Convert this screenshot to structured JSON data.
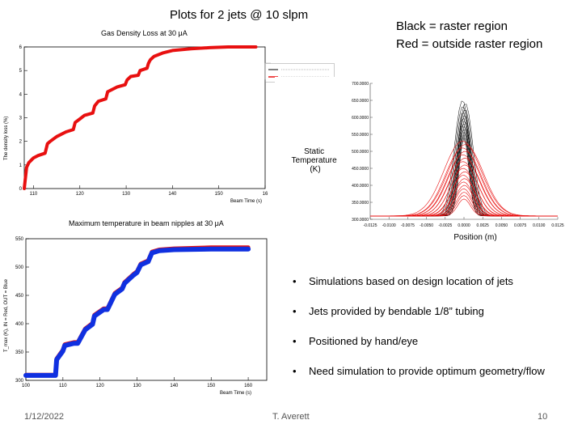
{
  "slide": {
    "title": "Plots for 2 jets @ 10 slpm",
    "legend_note_1": "Black = raster region",
    "legend_note_2": "Red = outside raster region",
    "date": "1/12/2022",
    "author": "T. Averett",
    "page": "10"
  },
  "bullets": [
    "Simulations based on design location of jets",
    "Jets provided by bendable 1/8” tubing",
    "Positioned by hand/eye",
    "Need simulation to provide optimum geometry/flow"
  ],
  "chart_data": [
    {
      "type": "line",
      "title": "Gas Density Loss at 30 μA",
      "xlabel": "Beam Time (s)",
      "ylabel": "The density loss (%)",
      "xlim": [
        108,
        160
      ],
      "ylim": [
        0,
        6
      ],
      "xticks": [
        "110",
        "120",
        "130",
        "140",
        "150",
        "16"
      ],
      "yticks": [
        "0",
        "1",
        "2",
        "3",
        "4",
        "5",
        "6"
      ],
      "series": [
        {
          "color": "#e81010",
          "x": [
            108,
            108.5,
            109,
            110,
            111,
            112.5,
            113,
            113.6,
            115,
            117,
            118.6,
            119,
            120,
            121,
            122.8,
            123.2,
            124,
            125.6,
            126,
            128,
            129.8,
            130.2,
            131,
            132.6,
            133,
            134.5,
            134.8,
            135.2,
            136,
            138,
            140,
            144,
            148,
            152,
            156,
            158
          ],
          "y": [
            0,
            0.9,
            1.1,
            1.3,
            1.4,
            1.5,
            1.9,
            2.0,
            2.2,
            2.4,
            2.5,
            2.8,
            2.95,
            3.1,
            3.2,
            3.5,
            3.7,
            3.8,
            4.1,
            4.3,
            4.4,
            4.6,
            4.75,
            4.8,
            5.0,
            5.1,
            5.3,
            5.45,
            5.6,
            5.75,
            5.85,
            5.92,
            5.97,
            6.0,
            6.0,
            6.0
          ]
        }
      ],
      "legend_entries_visible": false
    },
    {
      "type": "line",
      "title": "Maximum temperature in beam nipples at 30 μA",
      "xlabel": "Beam Time (s)",
      "ylabel": "T_max (K), IN = Red, OUT = Blue",
      "xlim": [
        100,
        165
      ],
      "ylim": [
        300,
        560
      ],
      "xticks": [
        "100",
        "110",
        "120",
        "130",
        "140",
        "150",
        "160"
      ],
      "yticks": [
        "300",
        "350",
        "400",
        "450",
        "500",
        "550"
      ],
      "series": [
        {
          "color": "#e81010",
          "x": [
            100,
            108,
            108.3,
            110,
            110.5,
            113,
            114,
            116,
            118,
            118.5,
            121,
            122,
            124,
            126,
            126.6,
            129,
            130,
            131,
            133,
            134,
            136,
            140,
            150,
            160
          ],
          "y": [
            310,
            310,
            340,
            356,
            366,
            370,
            370,
            395,
            405,
            420,
            432,
            432,
            460,
            470,
            480,
            495,
            500,
            514,
            520,
            536,
            540,
            542,
            544,
            544
          ]
        },
        {
          "color": "#1030e0",
          "x": [
            100,
            108,
            108.3,
            110,
            110.5,
            113,
            114,
            116,
            118,
            118.5,
            121,
            122,
            124,
            126,
            126.6,
            129,
            130,
            131,
            133,
            134,
            136,
            140,
            150,
            160
          ],
          "y": [
            309,
            309,
            338,
            354,
            364,
            368,
            368,
            393,
            403,
            418,
            430,
            430,
            458,
            468,
            478,
            493,
            498,
            512,
            518,
            534,
            538,
            540,
            541,
            541
          ]
        }
      ]
    },
    {
      "type": "line",
      "title": "",
      "xlabel": "Position (m)",
      "ylabel": "Static Temperature (K)",
      "xlim": [
        -0.0125,
        0.0125
      ],
      "ylim": [
        300,
        700
      ],
      "xticks": [
        "-0.0125",
        "-0.0100",
        "-0.0075",
        "-0.0050",
        "-0.0025",
        "0.0000",
        "0.0025",
        "0.0050",
        "0.0075",
        "0.0100",
        "0.0125"
      ],
      "yticks": [
        "300.0000",
        "350.0000",
        "400.0000",
        "450.0000",
        "500.0000",
        "550.0000",
        "600.0000",
        "650.0000",
        "700.0000"
      ],
      "series": [
        {
          "color": "#000000",
          "label_ref": "legend_note_1",
          "peak_temperature": 650,
          "peak_position": 0.0,
          "width": 0.0015
        },
        {
          "color": "#e81010",
          "label_ref": "legend_note_2",
          "peak_temperature": 530,
          "peak_position": 0.0,
          "width": 0.0035
        }
      ]
    }
  ]
}
